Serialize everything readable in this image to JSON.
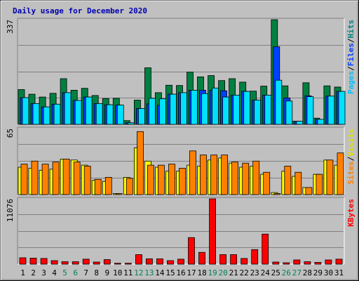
{
  "chart_data": {
    "type": "bar",
    "title": "Daily usage for December 2020",
    "categories": [
      "1",
      "2",
      "3",
      "4",
      "5",
      "6",
      "7",
      "8",
      "9",
      "10",
      "11",
      "12",
      "13",
      "14",
      "15",
      "16",
      "17",
      "18",
      "19",
      "20",
      "21",
      "22",
      "23",
      "24",
      "25",
      "26",
      "27",
      "28",
      "29",
      "30",
      "31"
    ],
    "weekend_days": [
      "5",
      "6",
      "12",
      "13",
      "19",
      "20",
      "26",
      "27"
    ],
    "panels": [
      {
        "id": "hits-files-pages",
        "ymax": 337,
        "ymax_label": "337",
        "legend": [
          "Pages",
          "/",
          "Files",
          "/",
          "Hits"
        ],
        "series": [
          {
            "name": "Hits",
            "color": "#008040",
            "values": [
              112,
              97,
              88,
              100,
              147,
              110,
              116,
              93,
              83,
              84,
              12,
              78,
              182,
              102,
              126,
              125,
              168,
              153,
              157,
              141,
              147,
              136,
              107,
              123,
              337,
              124,
              10,
              134,
              20,
              124,
              120
            ]
          },
          {
            "name": "Files",
            "color": "#0040ff",
            "values": [
              86,
              67,
              56,
              65,
              102,
              77,
              88,
              67,
              63,
              62,
              5,
              51,
              66,
              61,
              97,
              102,
              110,
              110,
              110,
              108,
              94,
              106,
              78,
              94,
              250,
              85,
              10,
              92,
              16,
              91,
              106
            ]
          },
          {
            "name": "Pages",
            "color": "#00e0ff",
            "values": [
              86,
              67,
              56,
              65,
              102,
              77,
              88,
              67,
              63,
              62,
              5,
              51,
              84,
              82,
              97,
              102,
              110,
              99,
              117,
              88,
              94,
              106,
              78,
              94,
              142,
              75,
              10,
              89,
              16,
              91,
              106
            ]
          }
        ]
      },
      {
        "id": "visits-sites",
        "ymax": 65,
        "ymax_label": "65",
        "legend": [
          "Sites",
          "/",
          "Visits"
        ],
        "series": [
          {
            "name": "Visits",
            "color": "#ffff00",
            "values": [
              27,
              26,
              24,
              25,
              35,
              34,
              29,
              14,
              13,
              1,
              17,
              46,
              33,
              27,
              23,
              23,
              29,
              28,
              34,
              36,
              31,
              27,
              28,
              20,
              2,
              23,
              18,
              7,
              20,
              34,
              29
            ]
          },
          {
            "name": "Sites",
            "color": "#ff8000",
            "values": [
              30,
              33,
              30,
              32,
              35,
              32,
              28,
              15,
              17,
              1,
              16,
              62,
              29,
              29,
              30,
              26,
              43,
              39,
              39,
              39,
              32,
              31,
              33,
              22,
              1,
              28,
              22,
              7,
              20,
              34,
              41
            ]
          }
        ]
      },
      {
        "id": "kbytes",
        "ymax": 11076,
        "ymax_label": "11076",
        "legend": [
          "KBytes"
        ],
        "series": [
          {
            "name": "KBytes",
            "color": "#ff0000",
            "values": [
              1080,
              1020,
              960,
              600,
              420,
              420,
              840,
              360,
              780,
              150,
              150,
              1620,
              900,
              900,
              600,
              840,
              4500,
              2000,
              11076,
              1620,
              1620,
              960,
              2460,
              5100,
              360,
              240,
              720,
              420,
              300,
              720,
              840
            ]
          }
        ]
      }
    ]
  }
}
